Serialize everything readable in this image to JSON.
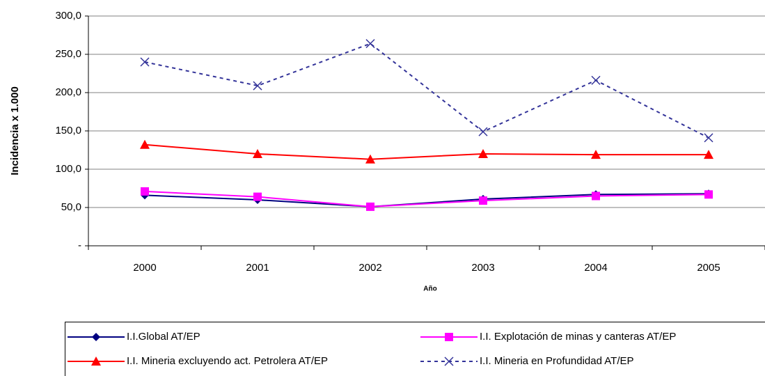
{
  "chart_data": {
    "type": "line",
    "y_label": "Incidencia x 1.000",
    "x_label": "Año",
    "categories": [
      "2000",
      "2001",
      "2002",
      "2003",
      "2004",
      "2005"
    ],
    "series": [
      {
        "name": "I.I.Global AT/EP",
        "color": "#000080",
        "marker": "diamond",
        "dashed": false,
        "values": [
          66,
          60,
          51,
          61,
          67,
          68
        ]
      },
      {
        "name": "I.I. Explotación de minas y canteras AT/EP",
        "color": "#ff00ff",
        "marker": "square",
        "dashed": false,
        "values": [
          71,
          64,
          51,
          59,
          65,
          67
        ]
      },
      {
        "name": "I.I. Mineria excluyendo act. Petrolera AT/EP",
        "color": "#ff0000",
        "marker": "triangle",
        "dashed": false,
        "values": [
          132,
          120,
          113,
          120,
          119,
          119
        ]
      },
      {
        "name": "I.I. Mineria en Profundidad AT/EP",
        "color": "#333399",
        "marker": "x",
        "dashed": true,
        "values": [
          240,
          209,
          264,
          149,
          216,
          141
        ]
      }
    ],
    "ylim": [
      0,
      300
    ],
    "yticks": [
      {
        "value": 0,
        "label": "-"
      },
      {
        "value": 50,
        "label": "50,0"
      },
      {
        "value": 100,
        "label": "100,0"
      },
      {
        "value": 150,
        "label": "150,0"
      },
      {
        "value": 200,
        "label": "200,0"
      },
      {
        "value": 250,
        "label": "250,0"
      },
      {
        "value": 300,
        "label": "300,0"
      }
    ],
    "grid": true,
    "legend": "bottom"
  }
}
